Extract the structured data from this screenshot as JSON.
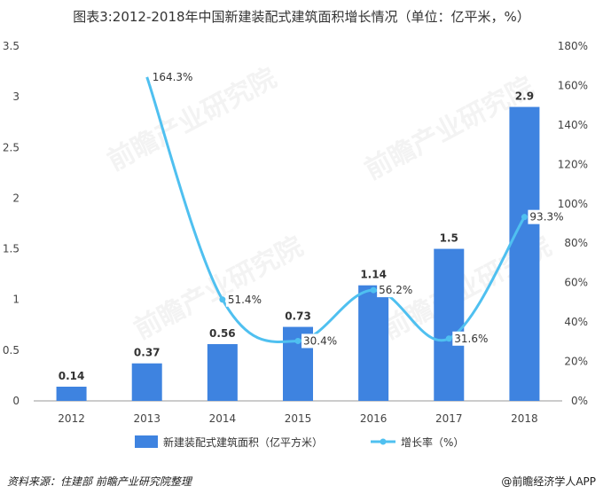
{
  "title": "图表3:2012-2018年中国新建装配式建筑面积增长情况（单位：亿平米，%）",
  "chart_data": {
    "type": "bar",
    "categories": [
      "2012",
      "2013",
      "2014",
      "2015",
      "2016",
      "2017",
      "2018"
    ],
    "series": [
      {
        "name": "新建装配式建筑面积（亿平方米）",
        "type": "bar",
        "axis": "left",
        "values": [
          0.14,
          0.37,
          0.56,
          0.73,
          1.14,
          1.5,
          2.9
        ],
        "labels": [
          "0.14",
          "0.37",
          "0.56",
          "0.73",
          "1.14",
          "1.5",
          "2.9"
        ]
      },
      {
        "name": "增长率（%）",
        "type": "line",
        "axis": "right",
        "values": [
          null,
          164.3,
          51.4,
          30.4,
          56.2,
          31.6,
          93.3
        ],
        "labels": [
          "",
          "164.3%",
          "51.4%",
          "30.4%",
          "56.2%",
          "31.6%",
          "93.3%"
        ]
      }
    ],
    "y_left": {
      "min": 0,
      "max": 3.5,
      "ticks": [
        "0",
        "0.5",
        "1",
        "1.5",
        "2",
        "2.5",
        "3",
        "3.5"
      ]
    },
    "y_right": {
      "min": 0,
      "max": 180,
      "ticks": [
        "0%",
        "20%",
        "40%",
        "60%",
        "80%",
        "100%",
        "120%",
        "140%",
        "160%",
        "180%"
      ]
    },
    "legend_position": "bottom",
    "grid": false
  },
  "colors": {
    "bar": "#3E83E0",
    "line": "#4FC0F0",
    "axis": "#666666",
    "text": "#333333"
  },
  "watermark": "前瞻产业研究院",
  "footer": {
    "source": "资料来源：住建部 前瞻产业研究院整理",
    "brand": "@前瞻经济学人APP"
  }
}
